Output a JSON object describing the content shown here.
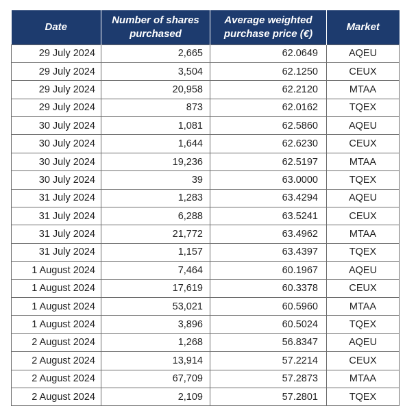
{
  "table": {
    "headers": {
      "date": "Date",
      "shares": "Number of shares purchased",
      "price": "Average weighted purchase price (€)",
      "market": "Market"
    },
    "header_color": "#1d3b6e",
    "rows": [
      {
        "date": "29 July 2024",
        "shares": "2,665",
        "price": "62.0649",
        "market": "AQEU"
      },
      {
        "date": "29 July 2024",
        "shares": "3,504",
        "price": "62.1250",
        "market": "CEUX"
      },
      {
        "date": "29 July 2024",
        "shares": "20,958",
        "price": "62.2120",
        "market": "MTAA"
      },
      {
        "date": "29 July 2024",
        "shares": "873",
        "price": "62.0162",
        "market": "TQEX"
      },
      {
        "date": "30 July 2024",
        "shares": "1,081",
        "price": "62.5860",
        "market": "AQEU"
      },
      {
        "date": "30 July 2024",
        "shares": "1,644",
        "price": "62.6230",
        "market": "CEUX"
      },
      {
        "date": "30 July 2024",
        "shares": "19,236",
        "price": "62.5197",
        "market": "MTAA"
      },
      {
        "date": "30 July 2024",
        "shares": "39",
        "price": "63.0000",
        "market": "TQEX"
      },
      {
        "date": "31 July 2024",
        "shares": "1,283",
        "price": "63.4294",
        "market": "AQEU"
      },
      {
        "date": "31 July 2024",
        "shares": "6,288",
        "price": "63.5241",
        "market": "CEUX"
      },
      {
        "date": "31 July 2024",
        "shares": "21,772",
        "price": "63.4962",
        "market": "MTAA"
      },
      {
        "date": "31 July 2024",
        "shares": "1,157",
        "price": "63.4397",
        "market": "TQEX"
      },
      {
        "date": "1 August 2024",
        "shares": "7,464",
        "price": "60.1967",
        "market": "AQEU"
      },
      {
        "date": "1 August 2024",
        "shares": "17,619",
        "price": "60.3378",
        "market": "CEUX"
      },
      {
        "date": "1 August 2024",
        "shares": "53,021",
        "price": "60.5960",
        "market": "MTAA"
      },
      {
        "date": "1 August 2024",
        "shares": "3,896",
        "price": "60.5024",
        "market": "TQEX"
      },
      {
        "date": "2 August 2024",
        "shares": "1,268",
        "price": "56.8347",
        "market": "AQEU"
      },
      {
        "date": "2 August 2024",
        "shares": "13,914",
        "price": "57.2214",
        "market": "CEUX"
      },
      {
        "date": "2 August 2024",
        "shares": "67,709",
        "price": "57.2873",
        "market": "MTAA"
      },
      {
        "date": "2 August 2024",
        "shares": "2,109",
        "price": "57.2801",
        "market": "TQEX"
      }
    ]
  }
}
